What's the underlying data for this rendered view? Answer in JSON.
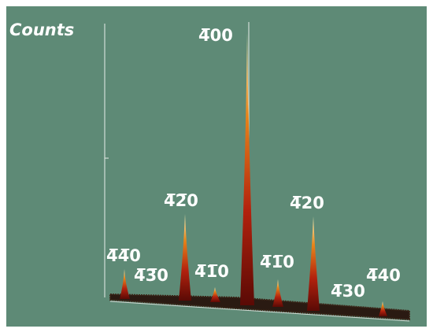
{
  "axis_label": "Counts",
  "peak_labels": [
    "4̅00",
    "4̅4̅0",
    "4̅3̅0",
    "4̅2̅0",
    "4̅1̅0",
    "4̅1̅0",
    "4̅20",
    "4̅30",
    "4̅40"
  ]
}
